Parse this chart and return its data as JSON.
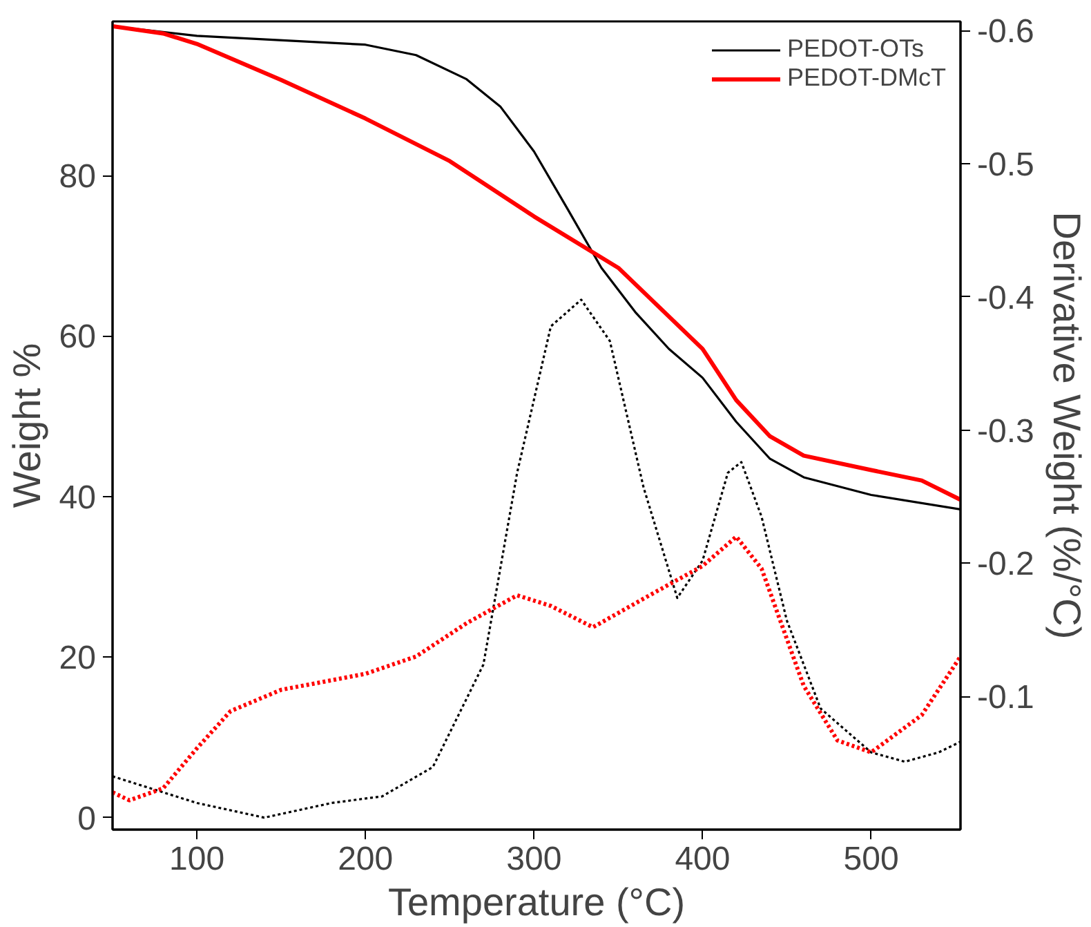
{
  "chart_data": {
    "type": "line",
    "xlabel": "Temperature (°C)",
    "ylabel": "Weight %",
    "y2label": "Derivative Weight (%/°C)",
    "xlim": [
      50,
      553
    ],
    "xticks": [
      100,
      200,
      300,
      400,
      500
    ],
    "ylim": [
      -1.5,
      99.2
    ],
    "yticks": [
      0,
      20,
      40,
      60,
      80
    ],
    "y2lim": [
      0.0,
      -0.607
    ],
    "y2ticks": [
      -0.6,
      -0.5,
      -0.4,
      -0.3,
      -0.2,
      -0.1
    ],
    "grid": false,
    "legend": "top right",
    "series": [
      {
        "name": "PEDOT-OTs",
        "color": "#000000",
        "line_style": "solid",
        "x": [
          50,
          100,
          200,
          230,
          260,
          280,
          300,
          320,
          340,
          360,
          380,
          400,
          420,
          440,
          460,
          500,
          553
        ],
        "values": [
          98.6,
          97.4,
          96.3,
          95,
          92,
          88.6,
          83,
          75.8,
          68.5,
          63,
          58.4,
          54.8,
          49.3,
          44.7,
          42.4,
          40.2,
          38.4
        ]
      },
      {
        "name": "PEDOT-DMcT",
        "color": "#ff0000",
        "line_style": "solid",
        "x": [
          50,
          80,
          100,
          150,
          200,
          250,
          300,
          350,
          400,
          420,
          440,
          460,
          500,
          530,
          553
        ],
        "values": [
          98.6,
          97.7,
          96.4,
          91.9,
          87.1,
          81.8,
          74.9,
          68.5,
          58.4,
          52,
          47.5,
          45.1,
          43.3,
          42,
          39.6
        ]
      },
      {
        "color": "#000000",
        "line_style": "dotted",
        "axis": "y2",
        "x": [
          50,
          80,
          100,
          140,
          180,
          210,
          240,
          270,
          290,
          310,
          328,
          345,
          365,
          385,
          400,
          415,
          423,
          435,
          450,
          470,
          500,
          520,
          540,
          553
        ],
        "values": [
          -0.04,
          -0.028,
          -0.02,
          -0.009,
          -0.02,
          -0.025,
          -0.047,
          -0.124,
          -0.268,
          -0.378,
          -0.398,
          -0.367,
          -0.257,
          -0.174,
          -0.202,
          -0.268,
          -0.276,
          -0.235,
          -0.157,
          -0.091,
          -0.058,
          -0.051,
          -0.058,
          -0.066
        ]
      },
      {
        "color": "#ff0000",
        "line_style": "dotted",
        "axis": "y2",
        "x": [
          50,
          60,
          80,
          100,
          120,
          150,
          200,
          230,
          260,
          290,
          310,
          335,
          370,
          400,
          420,
          435,
          460,
          480,
          500,
          530,
          553
        ],
        "values": [
          -0.028,
          -0.022,
          -0.031,
          -0.061,
          -0.089,
          -0.105,
          -0.117,
          -0.13,
          -0.155,
          -0.176,
          -0.168,
          -0.152,
          -0.177,
          -0.198,
          -0.22,
          -0.196,
          -0.108,
          -0.067,
          -0.058,
          -0.086,
          -0.13
        ]
      }
    ]
  }
}
